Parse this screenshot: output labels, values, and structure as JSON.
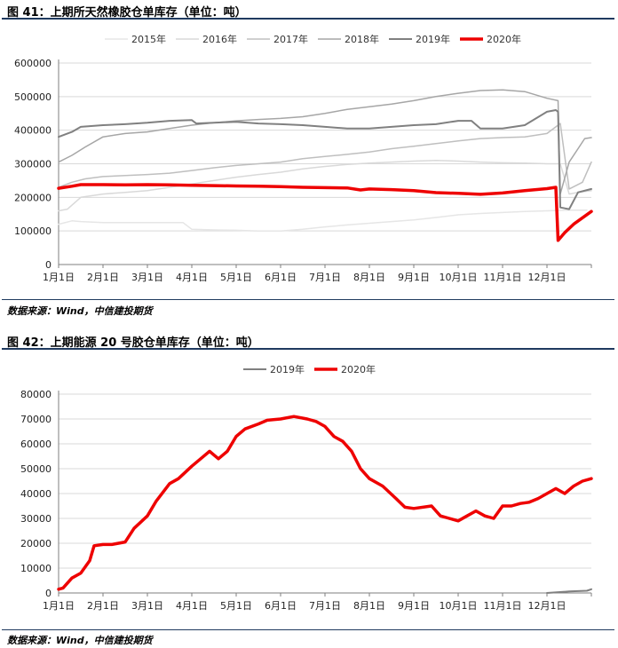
{
  "figures": [
    {
      "title": "图 41：上期所天然橡胶仓单库存（单位：吨）",
      "source": "数据来源：Wind，中信建投期货"
    },
    {
      "title": "图 42：上期能源 20 号胶仓单库存（单位：吨）",
      "source": "数据来源：Wind，中信建投期货"
    }
  ],
  "chart_data": [
    {
      "type": "line",
      "title": "",
      "xlabel": "",
      "ylabel": "",
      "xlim": [
        0,
        12
      ],
      "ylim": [
        0,
        600000
      ],
      "yticks": [
        0,
        100000,
        200000,
        300000,
        400000,
        500000,
        600000
      ],
      "yticklabels": [
        "0",
        "100000",
        "200000",
        "300000",
        "400000",
        "500000",
        "600000"
      ],
      "xtick_labels": [
        "1月1日",
        "2月1日",
        "3月1日",
        "4月1日",
        "5月1日",
        "6月1日",
        "7月1日",
        "8月1日",
        "9月1日",
        "10月1日",
        "11月1日",
        "12月1日"
      ],
      "grid": "horizontal",
      "legend_position": "top",
      "series": [
        {
          "name": "2015年",
          "color": "#e6e6e6",
          "width": 1.5,
          "x": [
            0,
            0.3,
            0.5,
            1,
            2,
            2.8,
            3,
            3.5,
            4,
            4.5,
            5,
            5.5,
            6,
            6.5,
            7,
            7.5,
            8,
            8.5,
            9,
            9.5,
            10,
            10.5,
            11,
            11.5,
            11.9
          ],
          "y": [
            120000,
            130000,
            128000,
            125000,
            125000,
            125000,
            105000,
            103000,
            102000,
            100000,
            100000,
            105000,
            112000,
            118000,
            123000,
            128000,
            133000,
            140000,
            148000,
            152000,
            155000,
            158000,
            160000,
            162000,
            162000
          ]
        },
        {
          "name": "2016年",
          "color": "#d9d9d9",
          "width": 1.5,
          "x": [
            0,
            0.2,
            0.5,
            1,
            1.5,
            2,
            2.5,
            3,
            3.5,
            4,
            4.5,
            5,
            5.5,
            6,
            6.5,
            7,
            7.5,
            8,
            8.5,
            9,
            9.5,
            10,
            10.5,
            11,
            11.3,
            11.5,
            11.7,
            12
          ],
          "y": [
            160000,
            165000,
            200000,
            210000,
            215000,
            220000,
            230000,
            240000,
            250000,
            260000,
            268000,
            275000,
            285000,
            292000,
            298000,
            302000,
            305000,
            308000,
            310000,
            308000,
            305000,
            303000,
            302000,
            300000,
            300000,
            210000,
            215000,
            220000
          ]
        },
        {
          "name": "2017年",
          "color": "#bfbfbf",
          "width": 1.5,
          "x": [
            0,
            0.3,
            0.6,
            1,
            1.5,
            2,
            2.5,
            3,
            3.5,
            4,
            4.5,
            5,
            5.5,
            6,
            6.5,
            7,
            7.5,
            8,
            8.5,
            9,
            9.5,
            10,
            10.5,
            11,
            11.3,
            11.5,
            11.8,
            12
          ],
          "y": [
            230000,
            245000,
            255000,
            262000,
            265000,
            268000,
            272000,
            280000,
            288000,
            295000,
            300000,
            305000,
            315000,
            322000,
            328000,
            335000,
            345000,
            352000,
            360000,
            368000,
            375000,
            378000,
            380000,
            390000,
            420000,
            225000,
            245000,
            305000
          ]
        },
        {
          "name": "2018年",
          "color": "#a6a6a6",
          "width": 1.5,
          "x": [
            0,
            0.3,
            0.6,
            1,
            1.5,
            2,
            2.5,
            3,
            3.5,
            4,
            4.5,
            5,
            5.5,
            6,
            6.5,
            7,
            7.5,
            8,
            8.5,
            9,
            9.5,
            10,
            10.5,
            11,
            11.25,
            11.3,
            11.5,
            11.7,
            11.85,
            12
          ],
          "y": [
            305000,
            325000,
            350000,
            380000,
            390000,
            395000,
            405000,
            415000,
            422000,
            428000,
            432000,
            435000,
            440000,
            450000,
            462000,
            470000,
            478000,
            488000,
            500000,
            510000,
            518000,
            520000,
            515000,
            495000,
            488000,
            210000,
            305000,
            345000,
            375000,
            378000
          ]
        },
        {
          "name": "2019年",
          "color": "#808080",
          "width": 2,
          "x": [
            0,
            0.3,
            0.5,
            1,
            1.5,
            2,
            2.5,
            3,
            3.1,
            3.5,
            4,
            4.5,
            5,
            5.5,
            6,
            6.5,
            7,
            7.5,
            8,
            8.5,
            9,
            9.3,
            9.5,
            10,
            10.5,
            11,
            11.2,
            11.25,
            11.3,
            11.5,
            11.7,
            12
          ],
          "y": [
            380000,
            395000,
            410000,
            415000,
            418000,
            422000,
            428000,
            430000,
            420000,
            422000,
            425000,
            420000,
            418000,
            415000,
            410000,
            405000,
            405000,
            410000,
            415000,
            418000,
            428000,
            428000,
            405000,
            405000,
            415000,
            455000,
            460000,
            455000,
            170000,
            165000,
            215000,
            225000
          ]
        },
        {
          "name": "2020年",
          "color": "#ee0000",
          "width": 3.5,
          "x": [
            0,
            0.3,
            0.5,
            1,
            1.5,
            2,
            2.5,
            3,
            3.5,
            4,
            4.5,
            5,
            5.5,
            6,
            6.5,
            6.8,
            7,
            7.5,
            8,
            8.5,
            9,
            9.5,
            10,
            10.5,
            11,
            11.2,
            11.25,
            11.4,
            11.6,
            12
          ],
          "y": [
            227000,
            233000,
            238000,
            238000,
            237000,
            238000,
            237000,
            236000,
            235000,
            234000,
            233000,
            232000,
            230000,
            229000,
            228000,
            222000,
            225000,
            223000,
            220000,
            214000,
            212000,
            209000,
            213000,
            220000,
            226000,
            230000,
            72000,
            95000,
            120000,
            158000
          ]
        }
      ]
    },
    {
      "type": "line",
      "title": "",
      "xlabel": "",
      "ylabel": "",
      "xlim": [
        0,
        12
      ],
      "ylim": [
        0,
        80000
      ],
      "yticks": [
        0,
        10000,
        20000,
        30000,
        40000,
        50000,
        60000,
        70000,
        80000
      ],
      "yticklabels": [
        "0",
        "10000",
        "20000",
        "30000",
        "40000",
        "50000",
        "60000",
        "70000",
        "80000"
      ],
      "xtick_labels": [
        "1月1日",
        "2月1日",
        "3月1日",
        "4月1日",
        "5月1日",
        "6月1日",
        "7月1日",
        "8月1日",
        "9月1日",
        "10月1日",
        "11月1日",
        "12月1日"
      ],
      "grid": "horizontal",
      "legend_position": "top",
      "series": [
        {
          "name": "2019年",
          "color": "#808080",
          "width": 2,
          "x": [
            11.0,
            11.5,
            11.9,
            12
          ],
          "y": [
            0,
            600,
            900,
            1500
          ]
        },
        {
          "name": "2020年",
          "color": "#ee0000",
          "width": 3.5,
          "x": [
            0,
            0.1,
            0.3,
            0.5,
            0.7,
            0.8,
            1.0,
            1.2,
            1.5,
            1.7,
            2.0,
            2.2,
            2.5,
            2.7,
            3.0,
            3.2,
            3.4,
            3.6,
            3.8,
            4.0,
            4.2,
            4.5,
            4.7,
            5.0,
            5.3,
            5.6,
            5.8,
            6.0,
            6.2,
            6.4,
            6.6,
            6.8,
            7.0,
            7.3,
            7.6,
            7.8,
            8.0,
            8.4,
            8.6,
            8.8,
            9.0,
            9.2,
            9.4,
            9.6,
            9.8,
            10.0,
            10.2,
            10.4,
            10.6,
            10.8,
            11.0,
            11.2,
            11.4,
            11.6,
            11.8,
            12.0
          ],
          "y": [
            1500,
            2000,
            6000,
            8000,
            13000,
            19000,
            19500,
            19500,
            20500,
            26000,
            31000,
            37000,
            44000,
            46000,
            51000,
            54000,
            57000,
            54000,
            57000,
            63000,
            66000,
            68000,
            69500,
            70000,
            71000,
            70000,
            69000,
            67000,
            63000,
            61000,
            57000,
            50000,
            46000,
            43000,
            38000,
            34500,
            34000,
            35000,
            31000,
            30000,
            29000,
            31000,
            33000,
            31000,
            30000,
            35000,
            35000,
            36000,
            36500,
            38000,
            40000,
            42000,
            40000,
            43000,
            45000,
            46000
          ]
        }
      ]
    }
  ]
}
